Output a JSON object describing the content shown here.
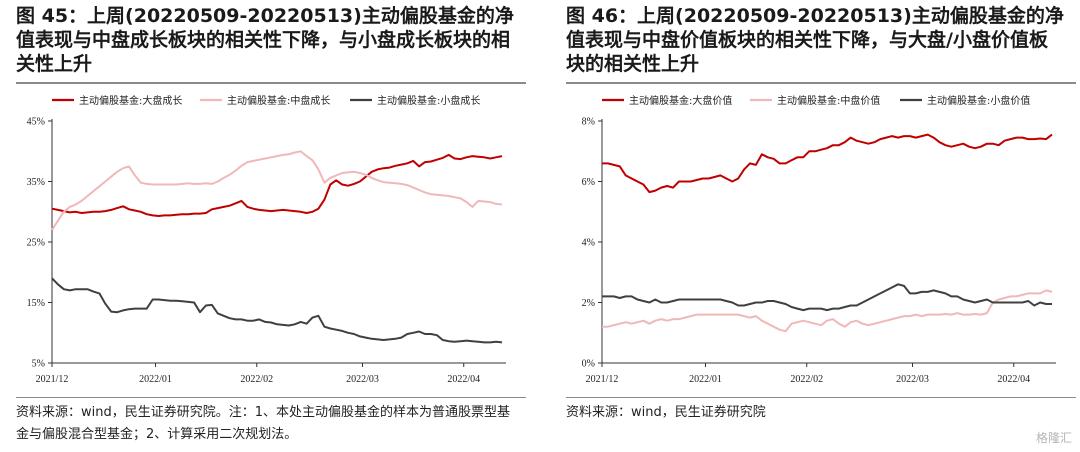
{
  "watermark": "格隆汇",
  "panels": [
    {
      "title": "图 45：上周(20220509-20220513)主动偏股基金的净值表现与中盘成长板块的相关性下降，与小盘成长板块的相关性上升",
      "source": "资料来源：wind，民生证券研究院。注：1、本处主动偏股基金的样本为普通股票型基金与偏股混合型基金；2、计算采用二次规划法。"
    },
    {
      "title": "图 46：上周(20220509-20220513)主动偏股基金的净值表现与中盘价值板块的相关性下降，与大盘/小盘价值板块的相关性上升",
      "source": "资料来源：wind，民生证券研究院"
    }
  ],
  "chart_data": [
    {
      "type": "line",
      "x_ticks": [
        "2021/12",
        "2022/01",
        "2022/02",
        "2022/03",
        "2022/04"
      ],
      "y_ticks": [
        "5%",
        "15%",
        "25%",
        "35%",
        "45%"
      ],
      "ylim": [
        5,
        45
      ],
      "y_unit": "%",
      "grid": false,
      "legend": "top",
      "series": [
        {
          "name": "主动偏股基金:大盘成长",
          "color": "#c00000",
          "values": [
            30.5,
            30.3,
            30.1,
            29.9,
            30.0,
            29.8,
            29.9,
            30.0,
            30.0,
            30.1,
            30.3,
            30.6,
            30.9,
            30.4,
            30.2,
            30.0,
            29.6,
            29.4,
            29.3,
            29.4,
            29.4,
            29.5,
            29.6,
            29.6,
            29.7,
            29.7,
            29.8,
            30.4,
            30.6,
            30.8,
            31.0,
            31.4,
            31.8,
            30.8,
            30.5,
            30.3,
            30.2,
            30.1,
            30.2,
            30.3,
            30.2,
            30.1,
            30.0,
            29.8,
            30.0,
            30.5,
            32.0,
            34.5,
            35.2,
            34.5,
            34.3,
            34.6,
            35.0,
            35.8,
            36.6,
            37.0,
            37.2,
            37.3,
            37.6,
            37.8,
            38.0,
            38.4,
            37.5,
            38.2,
            38.3,
            38.6,
            38.9,
            39.4,
            38.8,
            38.7,
            39.0,
            39.2,
            39.1,
            39.0,
            38.8,
            39.0,
            39.2
          ]
        },
        {
          "name": "主动偏股基金:中盘成长",
          "color": "#f0b8b8",
          "values": [
            27.0,
            28.5,
            30.0,
            30.8,
            31.2,
            31.8,
            32.6,
            33.4,
            34.2,
            35.0,
            35.8,
            36.6,
            37.2,
            37.5,
            36.0,
            34.8,
            34.6,
            34.5,
            34.5,
            34.5,
            34.5,
            34.5,
            34.6,
            34.7,
            34.6,
            34.6,
            34.7,
            34.6,
            35.0,
            35.6,
            36.1,
            36.8,
            37.6,
            38.2,
            38.4,
            38.6,
            38.8,
            39.0,
            39.2,
            39.4,
            39.5,
            39.8,
            40.0,
            39.2,
            38.5,
            37.0,
            34.8,
            35.6,
            36.0,
            36.4,
            36.5,
            36.6,
            36.4,
            36.1,
            35.6,
            35.2,
            34.9,
            34.8,
            34.7,
            34.6,
            34.4,
            34.0,
            33.6,
            33.2,
            32.9,
            32.8,
            32.7,
            32.6,
            32.4,
            32.2,
            31.6,
            30.8,
            31.8,
            31.7,
            31.6,
            31.3,
            31.2
          ]
        },
        {
          "name": "主动偏股基金:小盘成长",
          "color": "#404040",
          "values": [
            19.0,
            18.0,
            17.2,
            17.0,
            17.2,
            17.2,
            17.2,
            16.8,
            16.5,
            14.8,
            13.5,
            13.4,
            13.7,
            13.9,
            14.0,
            14.0,
            14.0,
            15.5,
            15.5,
            15.4,
            15.3,
            15.3,
            15.2,
            15.1,
            15.0,
            13.4,
            14.5,
            14.6,
            13.2,
            12.8,
            12.4,
            12.2,
            12.2,
            12.0,
            12.0,
            12.2,
            11.8,
            11.7,
            11.4,
            11.3,
            11.2,
            11.4,
            11.8,
            11.5,
            12.5,
            12.8,
            11.0,
            10.7,
            10.5,
            10.3,
            10.0,
            9.8,
            9.4,
            9.2,
            9.0,
            8.9,
            8.8,
            8.9,
            9.0,
            9.2,
            9.8,
            10.0,
            10.2,
            9.8,
            9.8,
            9.6,
            8.8,
            8.6,
            8.5,
            8.6,
            8.7,
            8.6,
            8.5,
            8.4,
            8.4,
            8.5,
            8.4
          ]
        }
      ]
    },
    {
      "type": "line",
      "x_ticks": [
        "2021/12",
        "2022/01",
        "2022/02",
        "2022/03",
        "2022/04"
      ],
      "y_ticks": [
        "0%",
        "2%",
        "4%",
        "6%",
        "8%"
      ],
      "ylim": [
        0,
        8
      ],
      "y_unit": "%",
      "grid": false,
      "legend": "top",
      "series": [
        {
          "name": "主动偏股基金:大盘价值",
          "color": "#c00000",
          "values": [
            6.6,
            6.6,
            6.55,
            6.5,
            6.2,
            6.1,
            6.0,
            5.9,
            5.65,
            5.7,
            5.8,
            5.85,
            5.8,
            6.0,
            6.0,
            6.0,
            6.05,
            6.1,
            6.1,
            6.15,
            6.2,
            6.1,
            6.0,
            6.1,
            6.4,
            6.6,
            6.55,
            6.9,
            6.8,
            6.75,
            6.6,
            6.6,
            6.7,
            6.8,
            6.8,
            7.0,
            7.0,
            7.05,
            7.1,
            7.2,
            7.2,
            7.3,
            7.45,
            7.35,
            7.3,
            7.25,
            7.3,
            7.4,
            7.45,
            7.5,
            7.45,
            7.5,
            7.5,
            7.45,
            7.5,
            7.55,
            7.45,
            7.3,
            7.2,
            7.15,
            7.2,
            7.25,
            7.15,
            7.1,
            7.15,
            7.25,
            7.25,
            7.2,
            7.35,
            7.4,
            7.45,
            7.45,
            7.4,
            7.4,
            7.42,
            7.4,
            7.55
          ]
        },
        {
          "name": "主动偏股基金:中盘价值",
          "color": "#f0b8b8",
          "values": [
            1.2,
            1.2,
            1.25,
            1.3,
            1.35,
            1.3,
            1.35,
            1.4,
            1.3,
            1.4,
            1.45,
            1.4,
            1.45,
            1.45,
            1.5,
            1.55,
            1.6,
            1.6,
            1.6,
            1.6,
            1.6,
            1.6,
            1.6,
            1.6,
            1.55,
            1.5,
            1.55,
            1.4,
            1.3,
            1.2,
            1.1,
            1.05,
            1.3,
            1.35,
            1.4,
            1.35,
            1.3,
            1.25,
            1.4,
            1.45,
            1.3,
            1.2,
            1.35,
            1.4,
            1.3,
            1.25,
            1.3,
            1.35,
            1.4,
            1.45,
            1.5,
            1.55,
            1.55,
            1.6,
            1.55,
            1.6,
            1.6,
            1.6,
            1.62,
            1.6,
            1.65,
            1.6,
            1.6,
            1.62,
            1.6,
            1.65,
            2.0,
            2.1,
            2.15,
            2.2,
            2.2,
            2.25,
            2.3,
            2.3,
            2.3,
            2.4,
            2.35
          ]
        },
        {
          "name": "主动偏股基金:小盘价值",
          "color": "#404040",
          "values": [
            2.2,
            2.2,
            2.2,
            2.15,
            2.2,
            2.2,
            2.1,
            2.05,
            2.0,
            2.1,
            2.0,
            2.0,
            2.05,
            2.1,
            2.1,
            2.1,
            2.1,
            2.1,
            2.1,
            2.1,
            2.1,
            2.05,
            2.0,
            1.9,
            1.9,
            1.95,
            2.0,
            2.0,
            2.05,
            2.05,
            2.0,
            1.95,
            1.85,
            1.8,
            1.75,
            1.8,
            1.8,
            1.8,
            1.75,
            1.8,
            1.8,
            1.85,
            1.9,
            1.9,
            2.0,
            2.1,
            2.2,
            2.3,
            2.4,
            2.5,
            2.6,
            2.55,
            2.3,
            2.3,
            2.35,
            2.35,
            2.4,
            2.35,
            2.3,
            2.2,
            2.2,
            2.1,
            2.05,
            2.0,
            2.05,
            2.1,
            2.0,
            2.0,
            2.0,
            2.0,
            2.0,
            2.0,
            2.05,
            1.9,
            2.0,
            1.95,
            1.95
          ]
        }
      ]
    }
  ]
}
